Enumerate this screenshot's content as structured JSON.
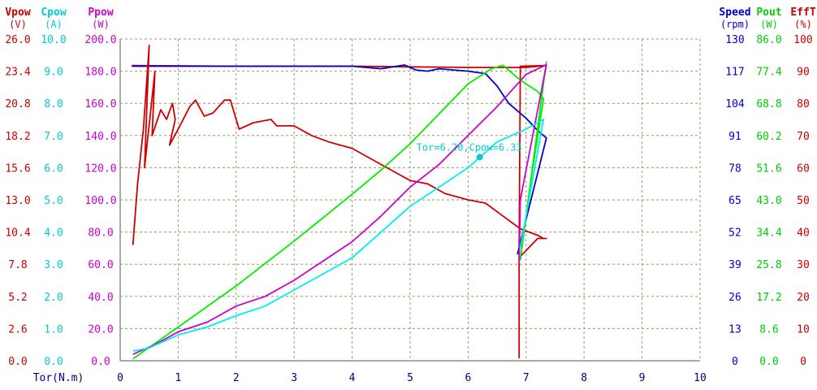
{
  "chart_data": {
    "type": "line",
    "x_axis": {
      "label": "Tor(N.m)",
      "ticks": [
        "0",
        "1",
        "2",
        "3",
        "4",
        "5",
        "6",
        "7",
        "8",
        "9",
        "10"
      ],
      "range": [
        0,
        10
      ]
    },
    "left_axes": [
      {
        "name": "Vpow",
        "unit": "(V)",
        "color": "#cc0000",
        "ticks": [
          "0.0",
          "2.6",
          "5.2",
          "7.8",
          "10.4",
          "13.0",
          "15.6",
          "18.2",
          "20.8",
          "23.4",
          "26.0"
        ],
        "range": [
          0,
          26
        ]
      },
      {
        "name": "Cpow",
        "unit": "(A)",
        "color": "#00cccc",
        "ticks": [
          "0.0",
          "1.0",
          "2.0",
          "3.0",
          "4.0",
          "5.0",
          "6.0",
          "7.0",
          "8.0",
          "9.0",
          "10.0"
        ],
        "range": [
          0,
          10
        ]
      },
      {
        "name": "Ppow",
        "unit": "(W)",
        "color": "#cc00cc",
        "ticks": [
          "0.0",
          "20.0",
          "40.0",
          "60.0",
          "80.0",
          "100.0",
          "120.0",
          "140.0",
          "160.0",
          "180.0",
          "200.0"
        ],
        "range": [
          0,
          200
        ]
      }
    ],
    "right_axes": [
      {
        "name": "Speed",
        "unit": "(rpm)",
        "color": "#0000cc",
        "ticks": [
          "0",
          "13",
          "26",
          "39",
          "52",
          "65",
          "78",
          "91",
          "104",
          "117",
          "130"
        ],
        "range": [
          0,
          130
        ]
      },
      {
        "name": "Pout",
        "unit": "(W)",
        "color": "#00cc00",
        "ticks": [
          "0.0",
          "8.6",
          "17.2",
          "25.8",
          "34.4",
          "43.0",
          "51.6",
          "60.2",
          "68.8",
          "77.4",
          "86.0"
        ],
        "range": [
          0,
          86
        ]
      },
      {
        "name": "EffT",
        "unit": "(%)",
        "color": "#cc0000",
        "ticks": [
          "0",
          "10",
          "20",
          "30",
          "40",
          "50",
          "60",
          "70",
          "80",
          "90",
          "100"
        ],
        "range": [
          0,
          100
        ]
      }
    ],
    "grid": true,
    "annotation": {
      "text": "Tor=6.20,Cpow=6.33",
      "x": 6.2,
      "y": 6.33,
      "axis": "Cpow",
      "color": "#00cccc"
    },
    "series": [
      {
        "axis": "Vpow",
        "color": "#cc0000",
        "points": [
          [
            0.2,
            23.85
          ],
          [
            2,
            23.8
          ],
          [
            4,
            23.8
          ],
          [
            5,
            23.75
          ],
          [
            6,
            23.7
          ],
          [
            7,
            23.7
          ],
          [
            7.33,
            23.85
          ],
          [
            6.9,
            23.8
          ],
          [
            6.88,
            9.0
          ],
          [
            6.88,
            0.2
          ]
        ]
      },
      {
        "axis": "Speed",
        "color": "#0000cc",
        "points": [
          [
            0.2,
            119
          ],
          [
            1,
            119
          ],
          [
            2,
            119
          ],
          [
            3,
            119
          ],
          [
            4,
            119
          ],
          [
            4.5,
            118
          ],
          [
            4.9,
            119.5
          ],
          [
            5.1,
            117.5
          ],
          [
            5.3,
            117
          ],
          [
            5.5,
            118
          ],
          [
            6,
            117
          ],
          [
            6.3,
            116
          ],
          [
            6.5,
            111
          ],
          [
            6.7,
            104
          ],
          [
            7,
            98
          ],
          [
            7.2,
            93
          ],
          [
            7.35,
            90
          ],
          [
            6.85,
            43
          ]
        ]
      },
      {
        "axis": "EffT",
        "color": "#cc0000",
        "points": [
          [
            0.22,
            36
          ],
          [
            0.3,
            55
          ],
          [
            0.4,
            72
          ],
          [
            0.5,
            98
          ],
          [
            0.42,
            60
          ],
          [
            0.6,
            90
          ],
          [
            0.55,
            70
          ],
          [
            0.7,
            78
          ],
          [
            0.8,
            75
          ],
          [
            0.9,
            80
          ],
          [
            0.95,
            75
          ],
          [
            0.85,
            67
          ],
          [
            1.0,
            72
          ],
          [
            1.2,
            79
          ],
          [
            1.3,
            81
          ],
          [
            1.45,
            76
          ],
          [
            1.6,
            77
          ],
          [
            1.8,
            81
          ],
          [
            1.9,
            81
          ],
          [
            2.05,
            72
          ],
          [
            2.3,
            74
          ],
          [
            2.6,
            75
          ],
          [
            2.7,
            73
          ],
          [
            3.0,
            73
          ],
          [
            3.3,
            70
          ],
          [
            3.6,
            68
          ],
          [
            4.0,
            66
          ],
          [
            4.3,
            63
          ],
          [
            4.7,
            59
          ],
          [
            5.0,
            56
          ],
          [
            5.3,
            55
          ],
          [
            5.6,
            52
          ],
          [
            6.0,
            50
          ],
          [
            6.3,
            49
          ],
          [
            6.6,
            45
          ],
          [
            6.9,
            41
          ],
          [
            7.2,
            39
          ],
          [
            7.3,
            38
          ],
          [
            7.35,
            38
          ],
          [
            7.2,
            38
          ],
          [
            6.88,
            32
          ]
        ]
      },
      {
        "axis": "Pout",
        "color": "#00ee00",
        "points": [
          [
            0.22,
            0.5
          ],
          [
            1,
            9
          ],
          [
            2,
            20
          ],
          [
            3,
            32
          ],
          [
            4,
            44.5
          ],
          [
            4.5,
            51
          ],
          [
            5,
            58
          ],
          [
            5.5,
            66
          ],
          [
            6,
            74
          ],
          [
            6.4,
            78
          ],
          [
            6.6,
            79
          ],
          [
            6.9,
            75
          ],
          [
            7.2,
            72
          ],
          [
            7.3,
            70
          ],
          [
            7.1,
            50
          ],
          [
            6.9,
            27
          ],
          [
            7.35,
            80
          ]
        ]
      },
      {
        "axis": "Ppow",
        "color": "#cc00cc",
        "points": [
          [
            0.22,
            4
          ],
          [
            0.6,
            10
          ],
          [
            1,
            18
          ],
          [
            1.5,
            24
          ],
          [
            2,
            34
          ],
          [
            2.5,
            40
          ],
          [
            3,
            50
          ],
          [
            3.5,
            62
          ],
          [
            4,
            74
          ],
          [
            4.5,
            90
          ],
          [
            5,
            108
          ],
          [
            5.5,
            122
          ],
          [
            6,
            140
          ],
          [
            6.5,
            158
          ],
          [
            7,
            178
          ],
          [
            7.35,
            184
          ],
          [
            6.9,
            100
          ],
          [
            6.88,
            60
          ]
        ]
      },
      {
        "axis": "Cpow",
        "color": "#00eeee",
        "points": [
          [
            0.22,
            0.3
          ],
          [
            0.5,
            0.4
          ],
          [
            1,
            0.8
          ],
          [
            1.5,
            1.05
          ],
          [
            2,
            1.4
          ],
          [
            2.5,
            1.7
          ],
          [
            3,
            2.2
          ],
          [
            3.5,
            2.7
          ],
          [
            4,
            3.2
          ],
          [
            4.5,
            4.0
          ],
          [
            5,
            4.8
          ],
          [
            5.5,
            5.4
          ],
          [
            6,
            6.0
          ],
          [
            6.5,
            6.8
          ],
          [
            7,
            7.2
          ],
          [
            7.3,
            7.5
          ],
          [
            6.9,
            3.5
          ]
        ]
      }
    ]
  }
}
